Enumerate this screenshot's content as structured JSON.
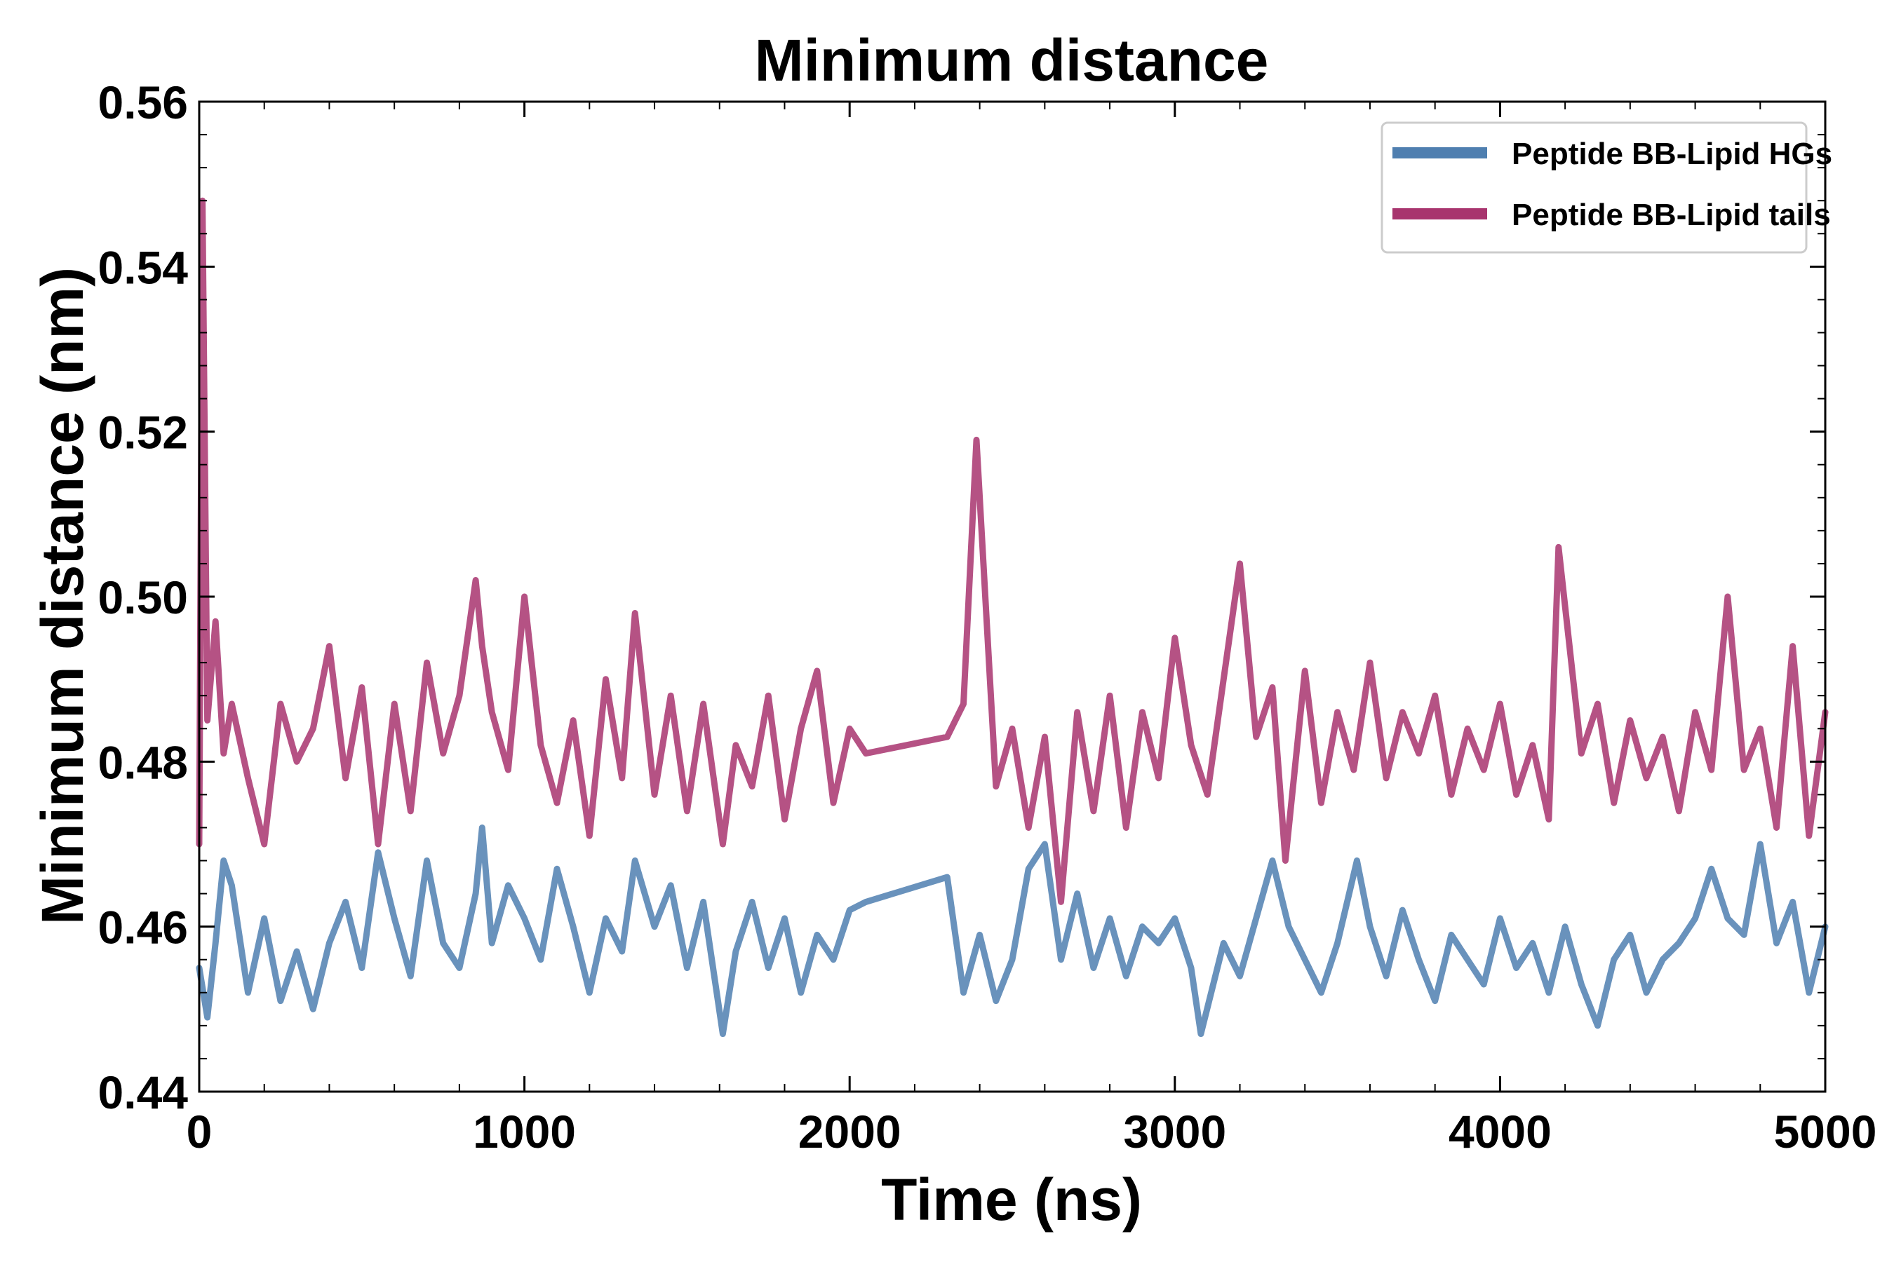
{
  "chart_data": {
    "type": "line",
    "title": "Minimum distance",
    "xlabel": "Time (ns)",
    "ylabel": "Minimum distance (nm)",
    "xlim": [
      0,
      5000
    ],
    "ylim": [
      0.44,
      0.56
    ],
    "xticks": [
      0,
      1000,
      2000,
      3000,
      4000,
      5000
    ],
    "xtick_labels": [
      "0",
      "1000",
      "2000",
      "3000",
      "4000",
      "5000"
    ],
    "yticks": [
      0.44,
      0.46,
      0.48,
      0.5,
      0.52,
      0.54,
      0.56
    ],
    "ytick_labels": [
      "0.44",
      "0.46",
      "0.48",
      "0.50",
      "0.52",
      "0.54",
      "0.56"
    ],
    "grid": false,
    "legend_position": "top-right",
    "series": [
      {
        "name": "Peptide BB-Lipid HGs",
        "color": "#4f7fb0",
        "x": [
          0,
          25,
          50,
          75,
          100,
          150,
          200,
          250,
          300,
          350,
          400,
          450,
          500,
          550,
          600,
          650,
          700,
          750,
          800,
          850,
          870,
          900,
          950,
          1000,
          1050,
          1100,
          1150,
          1200,
          1250,
          1300,
          1340,
          1400,
          1450,
          1500,
          1550,
          1610,
          1650,
          1700,
          1750,
          1800,
          1850,
          1900,
          1950,
          2000,
          2050,
          2300,
          2350,
          2400,
          2450,
          2500,
          2550,
          2600,
          2650,
          2700,
          2750,
          2800,
          2850,
          2900,
          2950,
          3000,
          3050,
          3080,
          3150,
          3200,
          3250,
          3300,
          3350,
          3400,
          3450,
          3500,
          3560,
          3600,
          3650,
          3700,
          3750,
          3800,
          3850,
          3900,
          3950,
          4000,
          4050,
          4100,
          4150,
          4200,
          4250,
          4300,
          4350,
          4400,
          4450,
          4500,
          4550,
          4600,
          4650,
          4700,
          4750,
          4800,
          4850,
          4900,
          4950,
          5000
        ],
        "values": [
          0.455,
          0.449,
          0.458,
          0.468,
          0.465,
          0.452,
          0.461,
          0.451,
          0.457,
          0.45,
          0.458,
          0.463,
          0.455,
          0.469,
          0.461,
          0.454,
          0.468,
          0.458,
          0.455,
          0.464,
          0.472,
          0.458,
          0.465,
          0.461,
          0.456,
          0.467,
          0.46,
          0.452,
          0.461,
          0.457,
          0.468,
          0.46,
          0.465,
          0.455,
          0.463,
          0.447,
          0.457,
          0.463,
          0.455,
          0.461,
          0.452,
          0.459,
          0.456,
          0.462,
          0.463,
          0.466,
          0.452,
          0.459,
          0.451,
          0.456,
          0.467,
          0.47,
          0.456,
          0.464,
          0.455,
          0.461,
          0.454,
          0.46,
          0.458,
          0.461,
          0.455,
          0.447,
          0.458,
          0.454,
          0.461,
          0.468,
          0.46,
          0.456,
          0.452,
          0.458,
          0.468,
          0.46,
          0.454,
          0.462,
          0.456,
          0.451,
          0.459,
          0.456,
          0.453,
          0.461,
          0.455,
          0.458,
          0.452,
          0.46,
          0.453,
          0.448,
          0.456,
          0.459,
          0.452,
          0.456,
          0.458,
          0.461,
          0.467,
          0.461,
          0.459,
          0.47,
          0.458,
          0.463,
          0.452,
          0.46
        ]
      },
      {
        "name": "Peptide BB-Lipid tails",
        "color": "#a8346e",
        "x": [
          0,
          10,
          25,
          50,
          75,
          100,
          150,
          200,
          250,
          300,
          350,
          400,
          450,
          500,
          550,
          600,
          650,
          700,
          750,
          800,
          850,
          870,
          900,
          950,
          1000,
          1050,
          1100,
          1150,
          1200,
          1250,
          1300,
          1340,
          1400,
          1450,
          1500,
          1550,
          1610,
          1650,
          1700,
          1750,
          1800,
          1850,
          1900,
          1950,
          2000,
          2050,
          2300,
          2350,
          2390,
          2450,
          2500,
          2550,
          2600,
          2650,
          2700,
          2750,
          2800,
          2850,
          2900,
          2950,
          3000,
          3050,
          3100,
          3150,
          3200,
          3250,
          3300,
          3340,
          3400,
          3450,
          3500,
          3550,
          3600,
          3650,
          3700,
          3750,
          3800,
          3850,
          3900,
          3950,
          4000,
          4050,
          4100,
          4150,
          4180,
          4250,
          4300,
          4350,
          4400,
          4450,
          4500,
          4550,
          4600,
          4650,
          4700,
          4750,
          4800,
          4850,
          4900,
          4950,
          5000
        ],
        "values": [
          0.47,
          0.548,
          0.485,
          0.497,
          0.481,
          0.487,
          0.478,
          0.47,
          0.487,
          0.48,
          0.484,
          0.494,
          0.478,
          0.489,
          0.47,
          0.487,
          0.474,
          0.492,
          0.481,
          0.488,
          0.502,
          0.494,
          0.486,
          0.479,
          0.5,
          0.482,
          0.475,
          0.485,
          0.471,
          0.49,
          0.478,
          0.498,
          0.476,
          0.488,
          0.474,
          0.487,
          0.47,
          0.482,
          0.477,
          0.488,
          0.473,
          0.484,
          0.491,
          0.475,
          0.484,
          0.481,
          0.483,
          0.487,
          0.519,
          0.477,
          0.484,
          0.472,
          0.483,
          0.463,
          0.486,
          0.474,
          0.488,
          0.472,
          0.486,
          0.478,
          0.495,
          0.482,
          0.476,
          0.49,
          0.504,
          0.483,
          0.489,
          0.468,
          0.491,
          0.475,
          0.486,
          0.479,
          0.492,
          0.478,
          0.486,
          0.481,
          0.488,
          0.476,
          0.484,
          0.479,
          0.487,
          0.476,
          0.482,
          0.473,
          0.506,
          0.481,
          0.487,
          0.475,
          0.485,
          0.478,
          0.483,
          0.474,
          0.486,
          0.479,
          0.5,
          0.479,
          0.484,
          0.472,
          0.494,
          0.471,
          0.486
        ]
      }
    ]
  }
}
